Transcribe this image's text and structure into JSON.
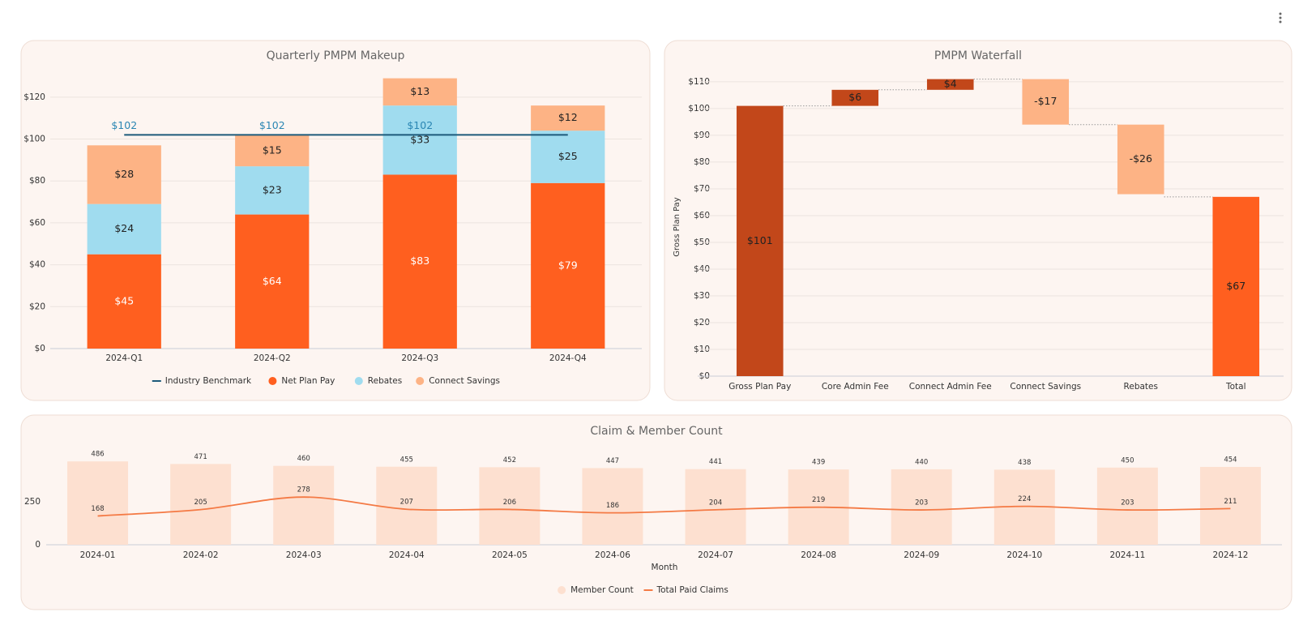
{
  "chart_data": [
    {
      "type": "stacked_bar",
      "title": "Quarterly PMPM Makeup",
      "categories": [
        "2024-Q1",
        "2024-Q2",
        "2024-Q3",
        "2024-Q4"
      ],
      "series": [
        {
          "name": "Industry Benchmark",
          "type": "line",
          "color": "#1d5a7a",
          "label_color": "#2a86b3",
          "values": [
            102,
            102,
            102,
            102
          ],
          "value_labels": [
            "$102",
            "$102",
            "$102",
            null
          ]
        },
        {
          "name": "Net Plan Pay",
          "type": "bar",
          "color": "#ff5f1f",
          "label_color": "#ffffff",
          "values": [
            45,
            64,
            83,
            79
          ],
          "value_labels": [
            "$45",
            "$64",
            "$83",
            "$79"
          ]
        },
        {
          "name": "Rebates",
          "type": "bar",
          "color": "#a0dcef",
          "label_color": "#222222",
          "values": [
            24,
            23,
            33,
            25
          ],
          "value_labels": [
            "$24",
            "$23",
            "$33",
            "$25"
          ]
        },
        {
          "name": "Connect Savings",
          "type": "bar",
          "color": "#fdb385",
          "label_color": "#222222",
          "values": [
            28,
            15,
            13,
            12
          ],
          "value_labels": [
            "$28",
            "$15",
            "$13",
            "$12"
          ]
        }
      ],
      "ylim": [
        0,
        130
      ],
      "yticks": [
        {
          "value": 0,
          "label": "$0"
        },
        {
          "value": 20,
          "label": "$20"
        },
        {
          "value": 40,
          "label": "$40"
        },
        {
          "value": 60,
          "label": "$60"
        },
        {
          "value": 80,
          "label": "$80"
        },
        {
          "value": 100,
          "label": "$100"
        },
        {
          "value": 120,
          "label": "$120"
        }
      ],
      "grid": true,
      "legend": "bottom"
    },
    {
      "type": "waterfall",
      "title": "PMPM Waterfall",
      "ylabel": "Gross Plan Pay",
      "categories": [
        "Gross Plan Pay",
        "Core Admin Fee",
        "Connect Admin Fee",
        "Connect Savings",
        "Rebates",
        "Total"
      ],
      "values": [
        101,
        6,
        4,
        -17,
        -26,
        67
      ],
      "value_labels": [
        "$101",
        "$6",
        "$4",
        "-$17",
        "-$26",
        "$67"
      ],
      "measures": [
        "absolute",
        "relative",
        "relative",
        "relative",
        "relative",
        "total"
      ],
      "colors": [
        "#c2471a",
        "#c2471a",
        "#c2471a",
        "#fdb385",
        "#fdb385",
        "#ff5f1f"
      ],
      "ylim": [
        0,
        113
      ],
      "yticks": [
        {
          "value": 0,
          "label": "$0"
        },
        {
          "value": 10,
          "label": "$10"
        },
        {
          "value": 20,
          "label": "$20"
        },
        {
          "value": 30,
          "label": "$30"
        },
        {
          "value": 40,
          "label": "$40"
        },
        {
          "value": 50,
          "label": "$50"
        },
        {
          "value": 60,
          "label": "$60"
        },
        {
          "value": 70,
          "label": "$70"
        },
        {
          "value": 80,
          "label": "$80"
        },
        {
          "value": 90,
          "label": "$90"
        },
        {
          "value": 100,
          "label": "$100"
        },
        {
          "value": 110,
          "label": "$110"
        }
      ],
      "grid": true
    },
    {
      "type": "combo",
      "title": "Claim & Member Count",
      "xlabel": "Month",
      "categories": [
        "2024-01",
        "2024-02",
        "2024-03",
        "2024-04",
        "2024-05",
        "2024-06",
        "2024-07",
        "2024-08",
        "2024-09",
        "2024-10",
        "2024-11",
        "2024-12"
      ],
      "series": [
        {
          "name": "Member Count",
          "type": "bar",
          "color": "#fde0d0",
          "values": [
            486,
            471,
            460,
            455,
            452,
            447,
            441,
            439,
            440,
            438,
            450,
            454
          ]
        },
        {
          "name": "Total Paid Claims",
          "type": "line",
          "color": "#f47a45",
          "values": [
            168,
            205,
            278,
            207,
            206,
            186,
            204,
            219,
            203,
            224,
            203,
            211
          ]
        }
      ],
      "ylim": [
        0,
        520
      ],
      "yticks": [
        0,
        250
      ],
      "grid": false,
      "legend": "bottom"
    }
  ]
}
